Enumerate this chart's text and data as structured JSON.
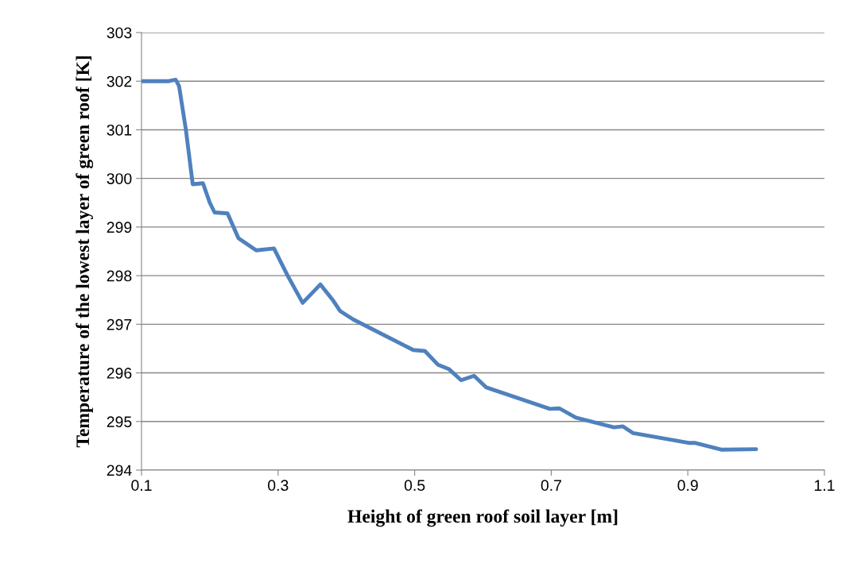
{
  "chart_data": {
    "type": "line",
    "xlabel": "Height of green roof soil layer [m]",
    "ylabel": "Temperature of the lowest layer of green roof [K]",
    "series": [
      {
        "color": "#4f81bd",
        "x": [
          0.1,
          0.14,
          0.15,
          0.155,
          0.165,
          0.175,
          0.19,
          0.2,
          0.207,
          0.226,
          0.242,
          0.268,
          0.294,
          0.314,
          0.336,
          0.362,
          0.38,
          0.391,
          0.41,
          0.498,
          0.515,
          0.534,
          0.55,
          0.568,
          0.587,
          0.605,
          0.698,
          0.712,
          0.736,
          0.792,
          0.805,
          0.82,
          0.901,
          0.91,
          0.95,
          1.0
        ],
        "values": [
          302,
          302,
          302.03,
          301.9,
          301,
          299.88,
          299.9,
          299.5,
          299.3,
          299.28,
          298.77,
          298.52,
          298.56,
          298.0,
          297.44,
          297.82,
          297.5,
          297.27,
          297.1,
          296.47,
          296.45,
          296.17,
          296.08,
          295.85,
          295.94,
          295.7,
          295.26,
          295.27,
          295.08,
          294.88,
          294.9,
          294.76,
          294.56,
          294.56,
          294.42,
          294.43
        ]
      }
    ],
    "xlim": [
      0.1,
      1.1
    ],
    "xticks": [
      {
        "value": 0.1,
        "label": "0.1"
      },
      {
        "value": 0.3,
        "label": "0.3"
      },
      {
        "value": 0.5,
        "label": "0.5"
      },
      {
        "value": 0.7,
        "label": "0.7"
      },
      {
        "value": 0.9,
        "label": "0.9"
      },
      {
        "value": 1.1,
        "label": "1.1"
      }
    ],
    "ylim": [
      294,
      303
    ],
    "yticks": [
      294,
      295,
      296,
      297,
      298,
      299,
      300,
      301,
      302,
      303
    ],
    "grid": "y",
    "legend": false,
    "marker": "none",
    "line_style": "solid"
  }
}
